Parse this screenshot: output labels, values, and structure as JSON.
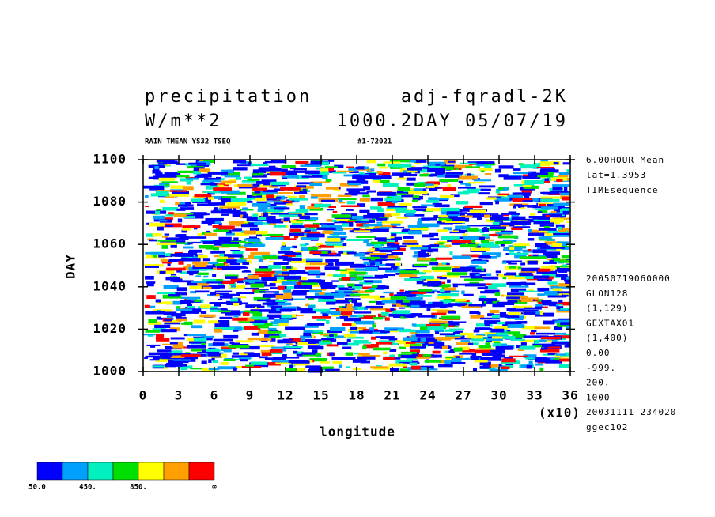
{
  "chart_data": {
    "type": "contour",
    "title": [
      "precipitation",
      "adj-fqradl-2K"
    ],
    "subtitle": [
      "W/m**2",
      "1000.2DAY 05/07/19"
    ],
    "header_left": "RAIN TMEAN YS32 TSEQ",
    "header_right": "#1-72021",
    "xlabel": "longitude",
    "x_multiplier": "(x10)",
    "ylabel": "DAY",
    "xlim": [
      0,
      36
    ],
    "xticks": [
      0,
      3,
      6,
      9,
      12,
      15,
      18,
      21,
      24,
      27,
      30,
      33,
      36
    ],
    "ylim": [
      1000,
      1100
    ],
    "yticks": [
      1000,
      1020,
      1040,
      1060,
      1080,
      1100
    ],
    "info_top": [
      "6.00HOUR Mean",
      "lat=1.3953",
      "TIMEsequence"
    ],
    "info_bottom": [
      "20050719060000",
      "GLON128",
      "(1,129)",
      "GEXTAX01",
      "(1,400)",
      "0.00",
      "-999.",
      "200.",
      "1000",
      "20031111 234020",
      "ggec102"
    ],
    "colorbar": {
      "colors": [
        "#0000ff",
        "#00a0ff",
        "#00f0c0",
        "#00e000",
        "#ffff00",
        "#ffa000",
        "#ff0000"
      ],
      "levels": [
        50,
        250,
        450,
        650,
        850,
        1050,
        1250
      ],
      "ticks": [
        {
          "value": 50,
          "label": "50.0"
        },
        {
          "value": 450,
          "label": "450."
        },
        {
          "value": 850,
          "label": "850."
        }
      ],
      "top_label": "∞"
    }
  }
}
